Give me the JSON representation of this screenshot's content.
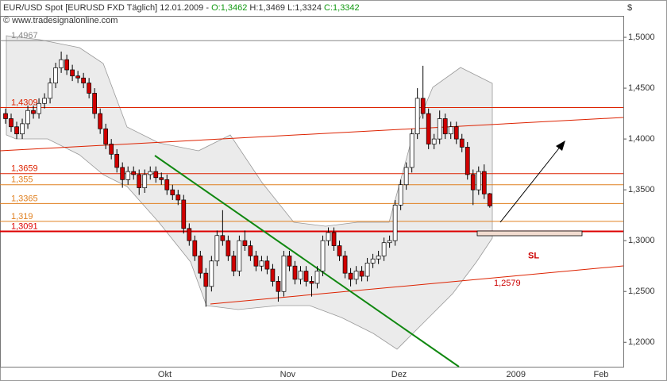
{
  "chart_data": {
    "type": "candlestick",
    "title": "EUR/USD Spot [EURUSD FXD  Täglich] 12.01.2009 -",
    "quote": [
      "O:1,3462",
      "H:1,3469",
      "L:1,3324",
      "C:1,3342"
    ],
    "copyright": "© www.tradesignalonline.com",
    "currency": "$",
    "ylim": [
      1.176,
      1.5211
    ],
    "yticks": [
      {
        "value": 1.2,
        "label": "1,2000"
      },
      {
        "value": 1.25,
        "label": "1,2500"
      },
      {
        "value": 1.3,
        "label": "1,3000"
      },
      {
        "value": 1.35,
        "label": "1,3500"
      },
      {
        "value": 1.4,
        "label": "1,4000"
      },
      {
        "value": 1.45,
        "label": "1,4500"
      },
      {
        "value": 1.5,
        "label": "1,5000"
      }
    ],
    "xlim": [
      -1,
      111
    ],
    "xticks": [
      {
        "value": 28.6,
        "label": "Okt"
      },
      {
        "value": 50.7,
        "label": "Nov"
      },
      {
        "value": 70.7,
        "label": "Dez"
      },
      {
        "value": 91.7,
        "label": "2009"
      },
      {
        "value": 107,
        "label": "Feb"
      }
    ],
    "up_color": "#ffffff",
    "down_color": "#d00000",
    "candles": [
      [
        1.425,
        1.43,
        1.415,
        1.42
      ],
      [
        1.42,
        1.425,
        1.407,
        1.412
      ],
      [
        1.412,
        1.417,
        1.4,
        1.405
      ],
      [
        1.405,
        1.42,
        1.4,
        1.415
      ],
      [
        1.415,
        1.433,
        1.41,
        1.428
      ],
      [
        1.428,
        1.433,
        1.42,
        1.425
      ],
      [
        1.425,
        1.44,
        1.42,
        1.435
      ],
      [
        1.435,
        1.445,
        1.43,
        1.44
      ],
      [
        1.44,
        1.46,
        1.435,
        1.455
      ],
      [
        1.455,
        1.475,
        1.45,
        1.47
      ],
      [
        1.47,
        1.486,
        1.465,
        1.478
      ],
      [
        1.478,
        1.483,
        1.463,
        1.468
      ],
      [
        1.468,
        1.473,
        1.457,
        1.462
      ],
      [
        1.462,
        1.467,
        1.455,
        1.46
      ],
      [
        1.46,
        1.465,
        1.45,
        1.455
      ],
      [
        1.455,
        1.46,
        1.44,
        1.445
      ],
      [
        1.445,
        1.45,
        1.42,
        1.425
      ],
      [
        1.425,
        1.43,
        1.405,
        1.41
      ],
      [
        1.41,
        1.415,
        1.39,
        1.395
      ],
      [
        1.395,
        1.4,
        1.38,
        1.385
      ],
      [
        1.385,
        1.39,
        1.367,
        1.372
      ],
      [
        1.372,
        1.377,
        1.352,
        1.36
      ],
      [
        1.36,
        1.373,
        1.355,
        1.368
      ],
      [
        1.368,
        1.373,
        1.36,
        1.365
      ],
      [
        1.365,
        1.37,
        1.345,
        1.352
      ],
      [
        1.352,
        1.37,
        1.347,
        1.365
      ],
      [
        1.365,
        1.373,
        1.36,
        1.368
      ],
      [
        1.368,
        1.373,
        1.357,
        1.362
      ],
      [
        1.362,
        1.367,
        1.355,
        1.36
      ],
      [
        1.36,
        1.365,
        1.345,
        1.35
      ],
      [
        1.35,
        1.355,
        1.34,
        1.345
      ],
      [
        1.345,
        1.35,
        1.335,
        1.34
      ],
      [
        1.34,
        1.345,
        1.307,
        1.312
      ],
      [
        1.312,
        1.317,
        1.295,
        1.3
      ],
      [
        1.3,
        1.305,
        1.28,
        1.285
      ],
      [
        1.285,
        1.29,
        1.263,
        1.268
      ],
      [
        1.268,
        1.273,
        1.235,
        1.255
      ],
      [
        1.255,
        1.285,
        1.25,
        1.28
      ],
      [
        1.28,
        1.31,
        1.275,
        1.305
      ],
      [
        1.305,
        1.33,
        1.295,
        1.3
      ],
      [
        1.3,
        1.305,
        1.28,
        1.285
      ],
      [
        1.285,
        1.29,
        1.265,
        1.27
      ],
      [
        1.27,
        1.305,
        1.265,
        1.3
      ],
      [
        1.3,
        1.31,
        1.29,
        1.295
      ],
      [
        1.295,
        1.3,
        1.28,
        1.285
      ],
      [
        1.285,
        1.29,
        1.27,
        1.275
      ],
      [
        1.275,
        1.285,
        1.27,
        1.28
      ],
      [
        1.28,
        1.285,
        1.267,
        1.272
      ],
      [
        1.272,
        1.277,
        1.255,
        1.26
      ],
      [
        1.26,
        1.265,
        1.24,
        1.25
      ],
      [
        1.25,
        1.29,
        1.245,
        1.285
      ],
      [
        1.285,
        1.29,
        1.27,
        1.275
      ],
      [
        1.275,
        1.28,
        1.257,
        1.262
      ],
      [
        1.262,
        1.275,
        1.257,
        1.27
      ],
      [
        1.27,
        1.275,
        1.255,
        1.26
      ],
      [
        1.26,
        1.265,
        1.245,
        1.258
      ],
      [
        1.258,
        1.275,
        1.253,
        1.27
      ],
      [
        1.27,
        1.305,
        1.265,
        1.3
      ],
      [
        1.3,
        1.313,
        1.295,
        1.308
      ],
      [
        1.308,
        1.313,
        1.29,
        1.295
      ],
      [
        1.295,
        1.3,
        1.28,
        1.285
      ],
      [
        1.285,
        1.29,
        1.263,
        1.268
      ],
      [
        1.268,
        1.273,
        1.255,
        1.262
      ],
      [
        1.262,
        1.275,
        1.257,
        1.27
      ],
      [
        1.27,
        1.275,
        1.26,
        1.265
      ],
      [
        1.265,
        1.283,
        1.26,
        1.278
      ],
      [
        1.278,
        1.287,
        1.273,
        1.282
      ],
      [
        1.282,
        1.29,
        1.277,
        1.285
      ],
      [
        1.285,
        1.303,
        1.28,
        1.298
      ],
      [
        1.298,
        1.305,
        1.293,
        1.3
      ],
      [
        1.3,
        1.34,
        1.295,
        1.335
      ],
      [
        1.335,
        1.36,
        1.33,
        1.355
      ],
      [
        1.355,
        1.377,
        1.35,
        1.372
      ],
      [
        1.372,
        1.41,
        1.367,
        1.405
      ],
      [
        1.405,
        1.45,
        1.4,
        1.44
      ],
      [
        1.44,
        1.472,
        1.42,
        1.425
      ],
      [
        1.425,
        1.43,
        1.39,
        1.395
      ],
      [
        1.395,
        1.405,
        1.39,
        1.4
      ],
      [
        1.4,
        1.428,
        1.395,
        1.42
      ],
      [
        1.42,
        1.425,
        1.4,
        1.405
      ],
      [
        1.405,
        1.417,
        1.4,
        1.412
      ],
      [
        1.412,
        1.417,
        1.395,
        1.4
      ],
      [
        1.4,
        1.405,
        1.387,
        1.392
      ],
      [
        1.392,
        1.397,
        1.36,
        1.365
      ],
      [
        1.365,
        1.37,
        1.335,
        1.35
      ],
      [
        1.35,
        1.373,
        1.345,
        1.368
      ],
      [
        1.368,
        1.375,
        1.341,
        1.346
      ],
      [
        1.3462,
        1.3469,
        1.3324,
        1.3342
      ]
    ],
    "levels": [
      {
        "value": 1.4967,
        "label": "1,4967",
        "color": "#888888"
      },
      {
        "value": 1.4309,
        "label": "1,4309",
        "color": "#dd2200"
      },
      {
        "value": 1.3659,
        "label": "1,3659",
        "color": "#dd2200"
      },
      {
        "value": 1.355,
        "label": "1,355",
        "color": "#e08020"
      },
      {
        "value": 1.3365,
        "label": "1,3365",
        "color": "#e08020"
      },
      {
        "value": 1.319,
        "label": "1,319",
        "color": "#e08020"
      },
      {
        "value": 1.3091,
        "label": "1,3091",
        "color": "#dd0000"
      }
    ],
    "annotations": [
      {
        "value": 1.2579,
        "label": "1,2579"
      },
      {
        "value": 1.2958,
        "label": "SL"
      }
    ]
  }
}
